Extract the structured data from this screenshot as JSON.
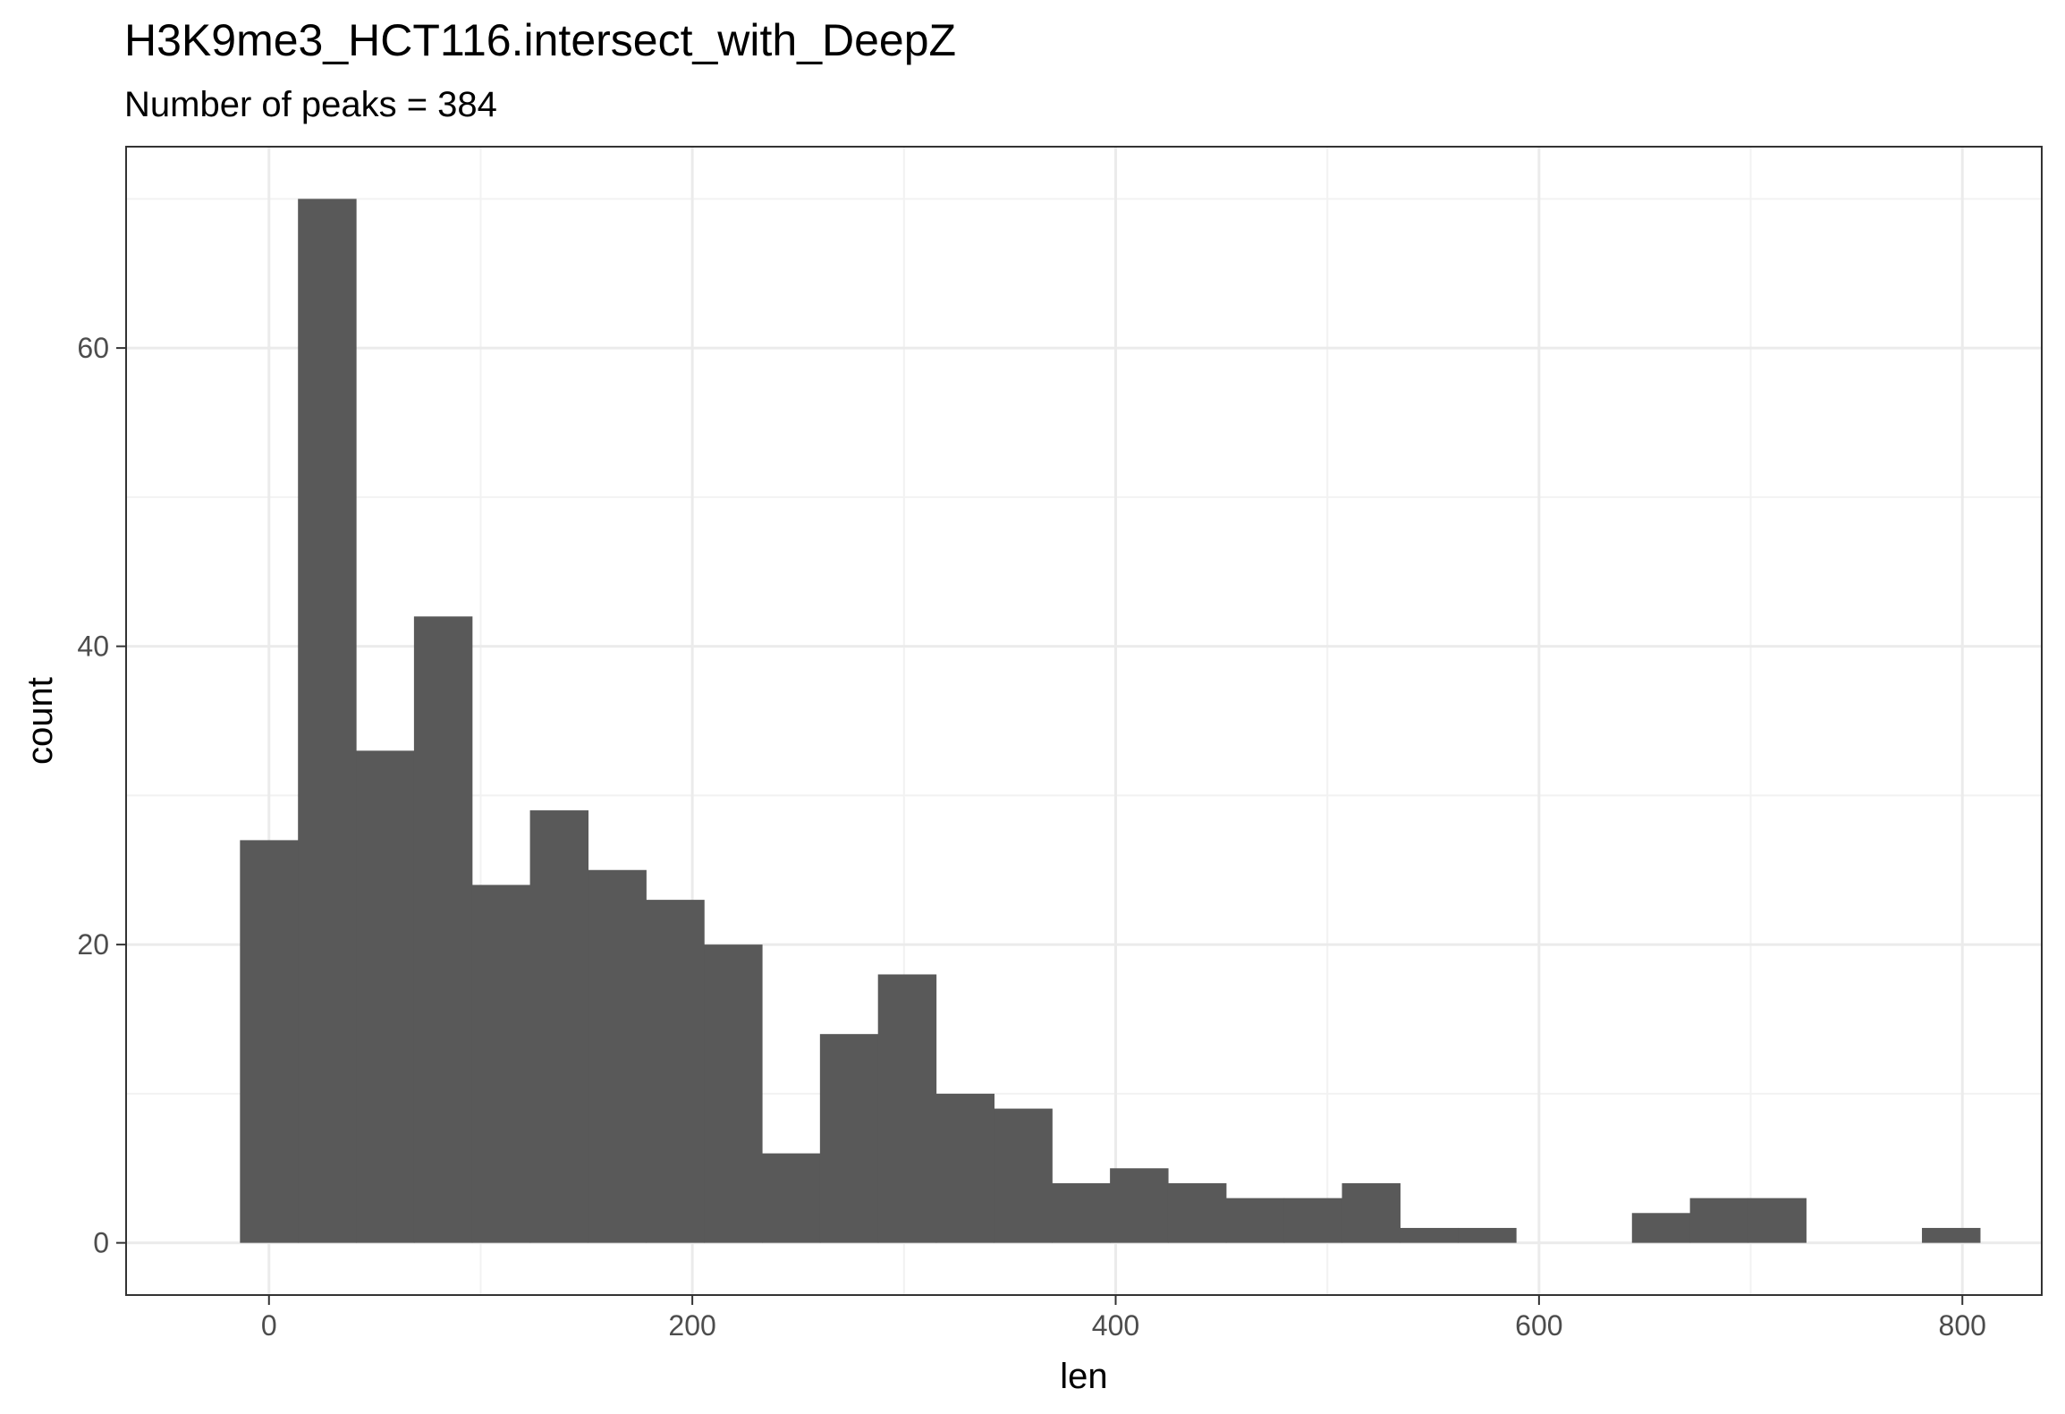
{
  "chart_data": {
    "type": "bar",
    "title": "H3K9me3_HCT116.intersect_with_DeepZ",
    "subtitle": "Number of peaks = 384",
    "xlabel": "len",
    "ylabel": "count",
    "xlim": [
      -67.5,
      837.5
    ],
    "ylim": [
      -3.5,
      73.5
    ],
    "xticks": [
      0,
      200,
      400,
      600,
      800
    ],
    "yticks": [
      0,
      20,
      40,
      60
    ],
    "x_minor_gridlines": [
      100,
      300,
      500,
      700
    ],
    "y_minor_gridlines": [
      10,
      30,
      50,
      70
    ],
    "grid": true,
    "bar_color": "#595959",
    "bins": [
      {
        "x0": -13.7,
        "x1": 13.7,
        "count": 27
      },
      {
        "x0": 13.7,
        "x1": 41.1,
        "count": 70
      },
      {
        "x0": 41.1,
        "x1": 68.5,
        "count": 33
      },
      {
        "x0": 68.5,
        "x1": 95.9,
        "count": 42
      },
      {
        "x0": 95.9,
        "x1": 123.3,
        "count": 24
      },
      {
        "x0": 123.3,
        "x1": 150.7,
        "count": 29
      },
      {
        "x0": 150.7,
        "x1": 178.1,
        "count": 25
      },
      {
        "x0": 178.1,
        "x1": 205.5,
        "count": 23
      },
      {
        "x0": 205.5,
        "x1": 232.9,
        "count": 20
      },
      {
        "x0": 232.9,
        "x1": 260.3,
        "count": 6
      },
      {
        "x0": 260.3,
        "x1": 287.7,
        "count": 14
      },
      {
        "x0": 287.7,
        "x1": 315.1,
        "count": 18
      },
      {
        "x0": 315.1,
        "x1": 342.5,
        "count": 10
      },
      {
        "x0": 342.5,
        "x1": 369.9,
        "count": 9
      },
      {
        "x0": 369.9,
        "x1": 397.3,
        "count": 4
      },
      {
        "x0": 397.3,
        "x1": 424.7,
        "count": 5
      },
      {
        "x0": 424.7,
        "x1": 452.1,
        "count": 4
      },
      {
        "x0": 452.1,
        "x1": 479.5,
        "count": 3
      },
      {
        "x0": 479.5,
        "x1": 506.9,
        "count": 3
      },
      {
        "x0": 506.9,
        "x1": 534.3,
        "count": 4
      },
      {
        "x0": 534.3,
        "x1": 561.7,
        "count": 1
      },
      {
        "x0": 561.7,
        "x1": 589.1,
        "count": 1
      },
      {
        "x0": 589.1,
        "x1": 616.5,
        "count": 0
      },
      {
        "x0": 616.5,
        "x1": 643.9,
        "count": 0
      },
      {
        "x0": 643.9,
        "x1": 671.3,
        "count": 2
      },
      {
        "x0": 671.3,
        "x1": 698.7,
        "count": 3
      },
      {
        "x0": 698.7,
        "x1": 726.1,
        "count": 3
      },
      {
        "x0": 726.1,
        "x1": 753.5,
        "count": 0
      },
      {
        "x0": 753.5,
        "x1": 780.9,
        "count": 0
      },
      {
        "x0": 780.9,
        "x1": 808.3,
        "count": 1
      }
    ]
  }
}
